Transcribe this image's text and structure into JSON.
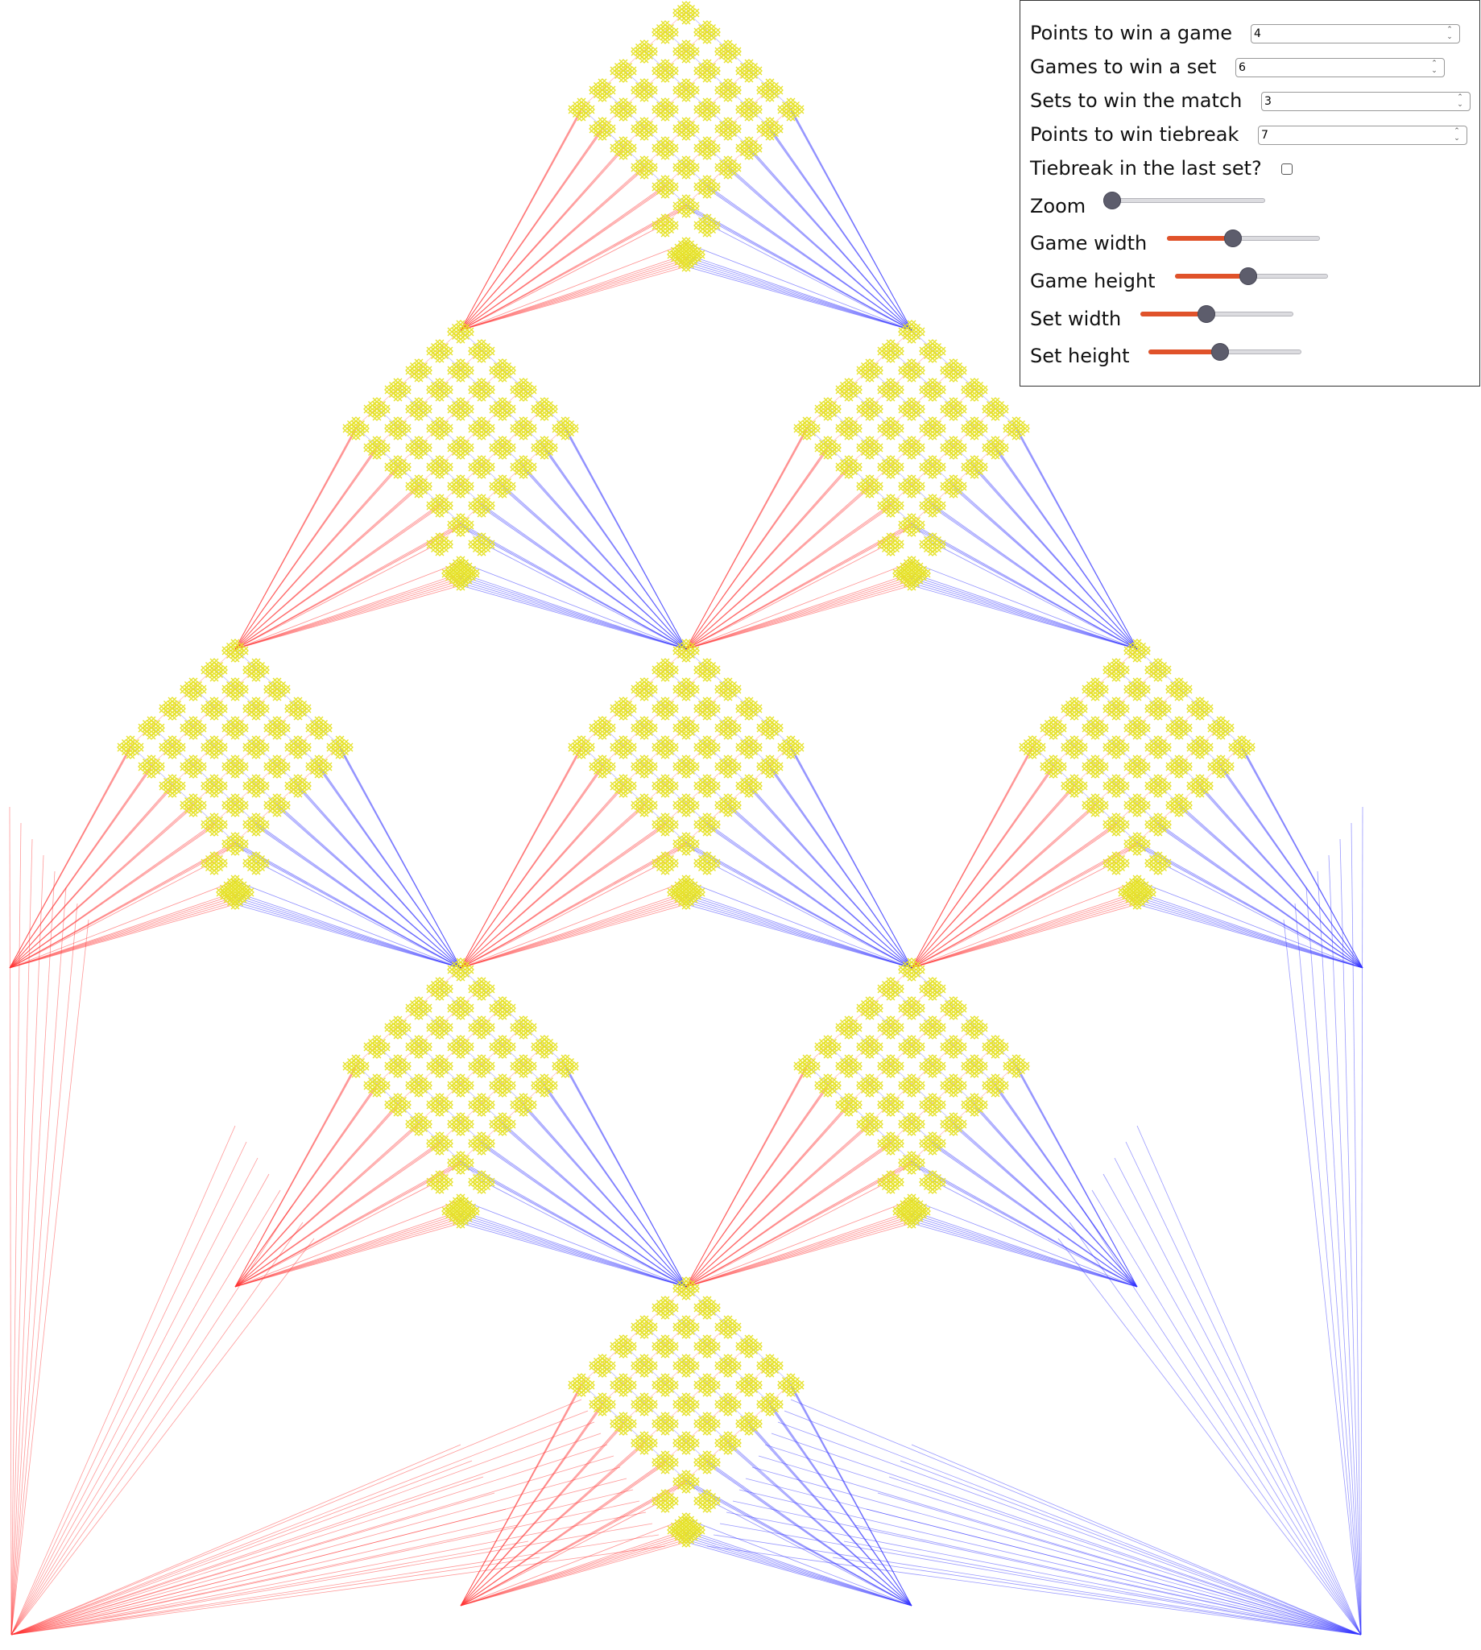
{
  "controls": {
    "points_game": {
      "label": "Points to win a game",
      "value": "4"
    },
    "games_set": {
      "label": "Games to win a set",
      "value": "6"
    },
    "sets_match": {
      "label": "Sets to win the match",
      "value": "3"
    },
    "points_tiebreak": {
      "label": "Points to win tiebreak",
      "value": "7"
    },
    "tiebreak_last": {
      "label": "Tiebreak in the last set?",
      "checked": false
    },
    "zoom": {
      "label": "Zoom",
      "value": 0.0
    },
    "game_width": {
      "label": "Game width",
      "value": 0.43
    },
    "game_height": {
      "label": "Game height",
      "value": 0.48
    },
    "set_width": {
      "label": "Set width",
      "value": 0.43
    },
    "set_height": {
      "label": "Set height",
      "value": 0.47
    }
  },
  "colors": {
    "player_a": "#ff3333",
    "player_b": "#3333ff",
    "node": "#e6e22a",
    "accent": "#e0522a",
    "thumb": "#5d5d6c"
  }
}
